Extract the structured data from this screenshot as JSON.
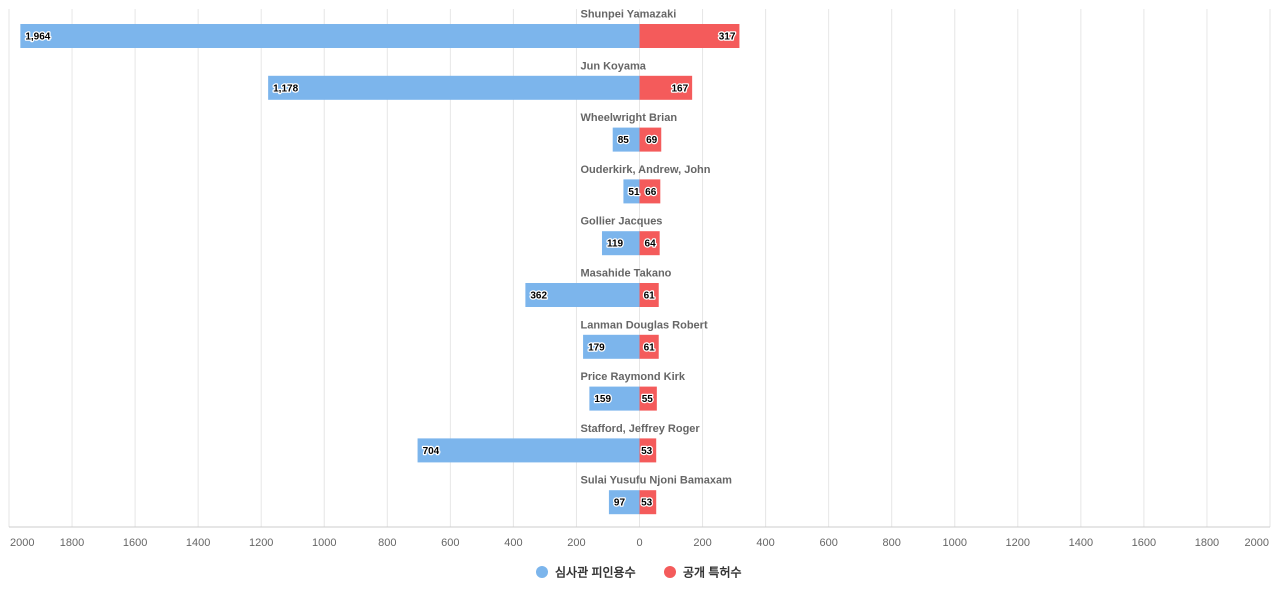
{
  "chart_data": {
    "type": "bar",
    "orientation": "horizontal-diverging",
    "categories": [
      "Shunpei Yamazaki",
      "Jun Koyama",
      "Wheelwright Brian",
      "Ouderkirk, Andrew, John",
      "Gollier Jacques",
      "Masahide Takano",
      "Lanman Douglas Robert",
      "Price Raymond Kirk",
      "Stafford, Jeffrey Roger",
      "Sulai Yusufu Njoni Bamaxam"
    ],
    "series": [
      {
        "name": "심사관 피인용수",
        "color": "#7cb5ec",
        "direction": "left",
        "values": [
          1964,
          1178,
          85,
          51,
          119,
          362,
          179,
          159,
          704,
          97
        ],
        "labels": [
          "1,964",
          "1,178",
          "85",
          "51",
          "119",
          "362",
          "179",
          "159",
          "704",
          "97"
        ]
      },
      {
        "name": "공개 특허수",
        "color": "#f45b5b",
        "direction": "right",
        "values": [
          317,
          167,
          69,
          66,
          64,
          61,
          61,
          55,
          53,
          53
        ],
        "labels": [
          "317",
          "167",
          "69",
          "66",
          "64",
          "61",
          "61",
          "55",
          "53",
          "53"
        ]
      }
    ],
    "xlim": [
      -2000,
      2000
    ],
    "ticks": [
      "2000",
      "1800",
      "1600",
      "1400",
      "1200",
      "1000",
      "800",
      "600",
      "400",
      "200",
      "0",
      "200",
      "400",
      "600",
      "800",
      "1000",
      "1200",
      "1400",
      "1600",
      "1800",
      "2000"
    ],
    "grid": true,
    "legend_position": "bottom-center"
  }
}
